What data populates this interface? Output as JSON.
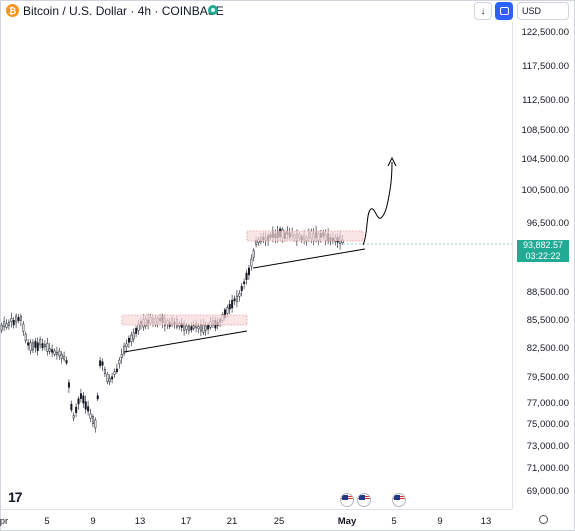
{
  "header": {
    "symbol_title": "Bitcoin / U.S. Dollar · 4h · COINBASE",
    "currency": "USD"
  },
  "price_axis": {
    "ticks": [
      "122,500.00",
      "117,500.00",
      "112,500.00",
      "108,500.00",
      "104,500.00",
      "100,500.00",
      "96,500.00",
      "88,500.00",
      "85,500.00",
      "82,500.00",
      "79,500.00",
      "77,000.00",
      "75,000.00",
      "73,000.00",
      "71,000.00",
      "69,000.00"
    ],
    "current_price": "93,882.57",
    "countdown": "03:22:22",
    "current_color": "#22ab94"
  },
  "time_axis": {
    "labels": [
      "pr",
      "5",
      "9",
      "13",
      "17",
      "21",
      "25",
      "May",
      "5",
      "9",
      "13"
    ]
  },
  "colors": {
    "up": "#131722",
    "down": "#131722",
    "zone_fill": "#f7d9dc",
    "zone_border": "#e57373",
    "drawing": "#000000"
  },
  "icons": [
    "tradingview-logo-icon",
    "us-flag-icon",
    "settings-icon",
    "chevron-down-icon",
    "fullscreen-icon"
  ]
}
